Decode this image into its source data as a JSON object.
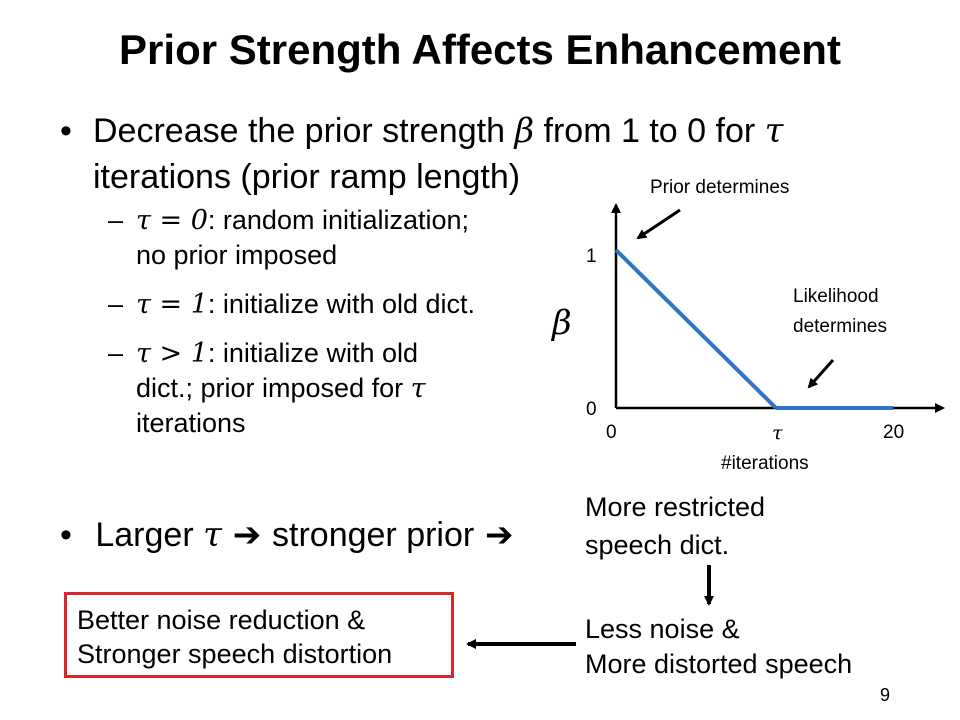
{
  "slide": {
    "title": "Prior Strength Affects Enhancement",
    "page_number": "9"
  },
  "bullet1": {
    "marker": "•",
    "part1": "Decrease the prior strength ",
    "beta": "β",
    "part2": " from 1 to 0 for ",
    "tau": "τ",
    "line2": "iterations (prior ramp length)"
  },
  "subitems": [
    {
      "dash": "–",
      "math": "τ = 0",
      "text": ": random initialization;",
      "cont": "no prior imposed"
    },
    {
      "dash": "–",
      "math": "τ = 1",
      "text": ": initialize with old dict."
    },
    {
      "dash": "–",
      "math": "τ > 1",
      "text": ": initialize with old",
      "cont": "dict.; prior imposed for ",
      "cont_math": "τ",
      "cont2": "iterations"
    }
  ],
  "bullet2": {
    "marker": "•",
    "part1": "Larger ",
    "tau": "τ",
    "arrow1": " ➔ ",
    "part2": "stronger prior",
    "arrow2": " ➔"
  },
  "plot": {
    "y_symbol": "β",
    "y_tick_top": "1",
    "y_tick_bottom": "0",
    "x_tick_left": "0",
    "x_tick_mid": "τ",
    "x_tick_right": "20",
    "x_label": "#iterations",
    "annotation_prior": "Prior determines",
    "annotation_likelihood_1": "Likelihood",
    "annotation_likelihood_2": "determines",
    "line_color": "#2e75c4",
    "segment_1": {
      "from": [
        0,
        1
      ],
      "to": [
        "τ",
        0
      ]
    },
    "segment_2": {
      "from": [
        "τ",
        0
      ],
      "to": [
        20,
        0
      ]
    }
  },
  "flow": {
    "restricted_1": "More restricted",
    "restricted_2": "speech dict.",
    "less_noise_1": "Less noise &",
    "less_noise_2": "More distorted speech",
    "result_1": "Better noise reduction &",
    "result_2": "Stronger speech distortion",
    "box_color": "#d9262e"
  }
}
